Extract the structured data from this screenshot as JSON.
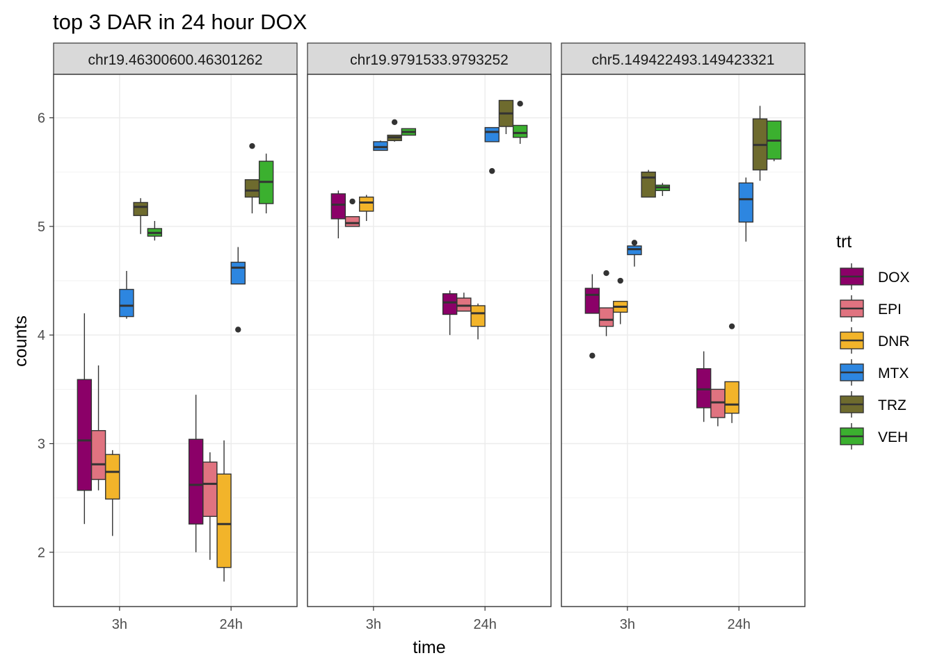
{
  "chart_data": {
    "type": "boxplot",
    "title": "top 3 DAR in 24 hour DOX",
    "xlabel": "time",
    "ylabel": "counts",
    "ylim": [
      1.5,
      6.4
    ],
    "yticks": [
      2,
      3,
      4,
      5,
      6
    ],
    "categories": [
      "3h",
      "24h"
    ],
    "grid": true,
    "legend": {
      "title": "trt",
      "position": "right"
    },
    "treatments": [
      {
        "name": "DOX",
        "color": "#8B0068"
      },
      {
        "name": "EPI",
        "color": "#E07380"
      },
      {
        "name": "DNR",
        "color": "#F2B42A"
      },
      {
        "name": "MTX",
        "color": "#2D86E0"
      },
      {
        "name": "TRZ",
        "color": "#6E6B2E"
      },
      {
        "name": "VEH",
        "color": "#3BB02F"
      }
    ],
    "panels": [
      {
        "label": "chr19.46300600.46301262",
        "groups": {
          "3h": [
            {
              "trt": "DOX",
              "lo": 2.26,
              "q1": 2.57,
              "med": 3.03,
              "q3": 3.59,
              "hi": 4.2,
              "out": []
            },
            {
              "trt": "EPI",
              "lo": 2.57,
              "q1": 2.67,
              "med": 2.81,
              "q3": 3.12,
              "hi": 3.72,
              "out": []
            },
            {
              "trt": "DNR",
              "lo": 2.15,
              "q1": 2.49,
              "med": 2.74,
              "q3": 2.9,
              "hi": 2.94,
              "out": []
            },
            {
              "trt": "MTX",
              "lo": 4.15,
              "q1": 4.17,
              "med": 4.27,
              "q3": 4.42,
              "hi": 4.59,
              "out": []
            },
            {
              "trt": "TRZ",
              "lo": 4.93,
              "q1": 5.1,
              "med": 5.18,
              "q3": 5.22,
              "hi": 5.26,
              "out": []
            },
            {
              "trt": "VEH",
              "lo": 4.87,
              "q1": 4.91,
              "med": 4.94,
              "q3": 4.98,
              "hi": 5.05,
              "out": []
            }
          ],
          "24h": [
            {
              "trt": "DOX",
              "lo": 2.0,
              "q1": 2.26,
              "med": 2.62,
              "q3": 3.04,
              "hi": 3.45,
              "out": []
            },
            {
              "trt": "EPI",
              "lo": 1.93,
              "q1": 2.33,
              "med": 2.63,
              "q3": 2.83,
              "hi": 2.92,
              "out": []
            },
            {
              "trt": "DNR",
              "lo": 1.73,
              "q1": 1.86,
              "med": 2.26,
              "q3": 2.72,
              "hi": 3.03,
              "out": []
            },
            {
              "trt": "MTX",
              "lo": 4.47,
              "q1": 4.47,
              "med": 4.62,
              "q3": 4.67,
              "hi": 4.81,
              "out": [
                4.05
              ]
            },
            {
              "trt": "TRZ",
              "lo": 5.12,
              "q1": 5.27,
              "med": 5.33,
              "q3": 5.43,
              "hi": 5.43,
              "out": [
                5.74
              ]
            },
            {
              "trt": "VEH",
              "lo": 5.12,
              "q1": 5.21,
              "med": 5.41,
              "q3": 5.6,
              "hi": 5.67,
              "out": []
            }
          ]
        }
      },
      {
        "label": "chr19.9791533.9793252",
        "groups": {
          "3h": [
            {
              "trt": "DOX",
              "lo": 4.89,
              "q1": 5.07,
              "med": 5.2,
              "q3": 5.3,
              "hi": 5.33,
              "out": []
            },
            {
              "trt": "EPI",
              "lo": 5.0,
              "q1": 5.0,
              "med": 5.03,
              "q3": 5.09,
              "hi": 5.09,
              "out": [
                5.23
              ]
            },
            {
              "trt": "DNR",
              "lo": 5.05,
              "q1": 5.14,
              "med": 5.22,
              "q3": 5.27,
              "hi": 5.29,
              "out": []
            },
            {
              "trt": "MTX",
              "lo": 5.7,
              "q1": 5.7,
              "med": 5.73,
              "q3": 5.78,
              "hi": 5.79,
              "out": []
            },
            {
              "trt": "TRZ",
              "lo": 5.78,
              "q1": 5.79,
              "med": 5.82,
              "q3": 5.84,
              "hi": 5.84,
              "out": [
                5.96
              ]
            },
            {
              "trt": "VEH",
              "lo": 5.84,
              "q1": 5.84,
              "med": 5.87,
              "q3": 5.9,
              "hi": 5.9,
              "out": []
            }
          ],
          "24h": [
            {
              "trt": "DOX",
              "lo": 4.0,
              "q1": 4.19,
              "med": 4.3,
              "q3": 4.38,
              "hi": 4.41,
              "out": []
            },
            {
              "trt": "EPI",
              "lo": 4.22,
              "q1": 4.22,
              "med": 4.27,
              "q3": 4.34,
              "hi": 4.39,
              "out": []
            },
            {
              "trt": "DNR",
              "lo": 3.96,
              "q1": 4.08,
              "med": 4.2,
              "q3": 4.27,
              "hi": 4.29,
              "out": []
            },
            {
              "trt": "MTX",
              "lo": 5.78,
              "q1": 5.78,
              "med": 5.87,
              "q3": 5.91,
              "hi": 5.91,
              "out": [
                5.51
              ]
            },
            {
              "trt": "TRZ",
              "lo": 5.85,
              "q1": 5.92,
              "med": 6.04,
              "q3": 6.16,
              "hi": 6.16,
              "out": []
            },
            {
              "trt": "VEH",
              "lo": 5.76,
              "q1": 5.82,
              "med": 5.86,
              "q3": 5.93,
              "hi": 5.93,
              "out": [
                6.13
              ]
            }
          ]
        }
      },
      {
        "label": "chr5.149422493.149423321",
        "groups": {
          "3h": [
            {
              "trt": "DOX",
              "lo": 4.2,
              "q1": 4.2,
              "med": 4.37,
              "q3": 4.43,
              "hi": 4.56,
              "out": [
                3.81
              ]
            },
            {
              "trt": "EPI",
              "lo": 3.99,
              "q1": 4.08,
              "med": 4.14,
              "q3": 4.25,
              "hi": 4.25,
              "out": [
                4.57
              ]
            },
            {
              "trt": "DNR",
              "lo": 4.1,
              "q1": 4.21,
              "med": 4.26,
              "q3": 4.31,
              "hi": 4.31,
              "out": [
                4.5
              ]
            },
            {
              "trt": "MTX",
              "lo": 4.63,
              "q1": 4.74,
              "med": 4.79,
              "q3": 4.82,
              "hi": 4.85,
              "out": [
                4.85
              ]
            },
            {
              "trt": "TRZ",
              "lo": 5.27,
              "q1": 5.27,
              "med": 5.45,
              "q3": 5.5,
              "hi": 5.52,
              "out": []
            },
            {
              "trt": "VEH",
              "lo": 5.28,
              "q1": 5.33,
              "med": 5.36,
              "q3": 5.38,
              "hi": 5.4,
              "out": []
            }
          ],
          "24h": [
            {
              "trt": "DOX",
              "lo": 3.2,
              "q1": 3.33,
              "med": 3.5,
              "q3": 3.69,
              "hi": 3.85,
              "out": []
            },
            {
              "trt": "EPI",
              "lo": 3.16,
              "q1": 3.24,
              "med": 3.38,
              "q3": 3.5,
              "hi": 3.5,
              "out": []
            },
            {
              "trt": "DNR",
              "lo": 3.19,
              "q1": 3.28,
              "med": 3.36,
              "q3": 3.57,
              "hi": 3.57,
              "out": [
                4.08
              ]
            },
            {
              "trt": "MTX",
              "lo": 4.86,
              "q1": 5.04,
              "med": 5.25,
              "q3": 5.4,
              "hi": 5.45,
              "out": []
            },
            {
              "trt": "TRZ",
              "lo": 5.42,
              "q1": 5.52,
              "med": 5.75,
              "q3": 5.99,
              "hi": 6.11,
              "out": []
            },
            {
              "trt": "VEH",
              "lo": 5.6,
              "q1": 5.62,
              "med": 5.79,
              "q3": 5.97,
              "hi": 5.97,
              "out": []
            }
          ]
        }
      }
    ]
  }
}
